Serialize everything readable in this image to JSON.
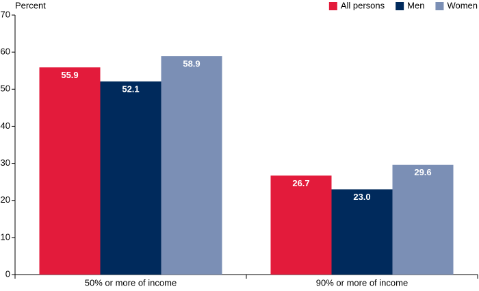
{
  "chart_data": {
    "type": "bar",
    "y_label": "Percent",
    "categories": [
      "50% or more of income",
      "90% or more of income"
    ],
    "series": [
      {
        "name": "All persons",
        "color": "#e31b3b",
        "values": [
          55.9,
          26.7
        ],
        "value_labels": [
          "55.9",
          "26.7"
        ]
      },
      {
        "name": "Men",
        "color": "#002a5c",
        "values": [
          52.1,
          23.0
        ],
        "value_labels": [
          "52.1",
          "23.0"
        ]
      },
      {
        "name": "Women",
        "color": "#7b8fb5",
        "values": [
          58.9,
          29.6
        ],
        "value_labels": [
          "58.9",
          "29.6"
        ]
      }
    ],
    "ylim": [
      0,
      70
    ],
    "yticks": [
      0,
      10,
      20,
      30,
      40,
      50,
      60,
      70
    ],
    "legend": "top-right"
  }
}
